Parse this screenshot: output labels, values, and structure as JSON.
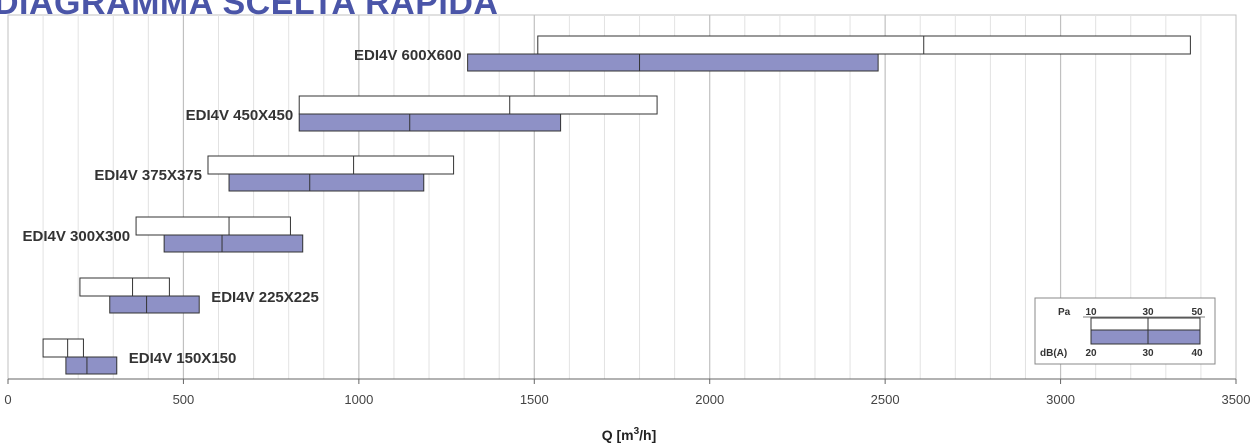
{
  "title": "DIAGRAMMA SCELTA RAPIDA",
  "chart_data": {
    "type": "range-bar",
    "title": "DIAGRAMMA SCELTA RAPIDA",
    "xlabel": "Q [m³/h]",
    "xlabel_base": "Q [m",
    "xlabel_sup": "3",
    "xlabel_end": "/h]",
    "xlim": [
      0,
      3500
    ],
    "xticks": [
      0,
      500,
      1000,
      1500,
      2000,
      2500,
      3000,
      3500
    ],
    "grid": true,
    "series": [
      {
        "name": "EDI4V 600X600",
        "pa": {
          "start": 1510,
          "mid": 2610,
          "end": 3370
        },
        "dba": {
          "start": 1310,
          "mid": 1800,
          "end": 2480
        }
      },
      {
        "name": "EDI4V 450X450",
        "pa": {
          "start": 830,
          "mid": 1430,
          "end": 1850
        },
        "dba": {
          "start": 830,
          "mid": 1145,
          "end": 1575
        }
      },
      {
        "name": "EDI4V 375X375",
        "pa": {
          "start": 570,
          "mid": 985,
          "end": 1270
        },
        "dba": {
          "start": 630,
          "mid": 860,
          "end": 1185
        }
      },
      {
        "name": "EDI4V 300X300",
        "pa": {
          "start": 365,
          "mid": 630,
          "end": 805
        },
        "dba": {
          "start": 445,
          "mid": 610,
          "end": 840
        }
      },
      {
        "name": "EDI4V 225X225",
        "pa": {
          "start": 205,
          "mid": 355,
          "end": 460
        },
        "dba": {
          "start": 290,
          "mid": 395,
          "end": 545
        }
      },
      {
        "name": "EDI4V 150X150",
        "pa": {
          "start": 100,
          "mid": 170,
          "end": 215
        },
        "dba": {
          "start": 165,
          "mid": 225,
          "end": 310
        }
      }
    ],
    "legend": {
      "position": "bottom-right",
      "pa_label": "Pa",
      "pa_ticks": [
        "10",
        "30",
        "50"
      ],
      "dba_label": "dB(A)",
      "dba_ticks": [
        "20",
        "30",
        "40"
      ]
    },
    "colors": {
      "dba_fill": "#8e91c6",
      "pa_fill": "#ffffff",
      "bar_stroke": "#333333",
      "grid_major": "#c0c0c0",
      "grid_minor": "#e2e2e2",
      "title": "#4a55a8"
    }
  }
}
